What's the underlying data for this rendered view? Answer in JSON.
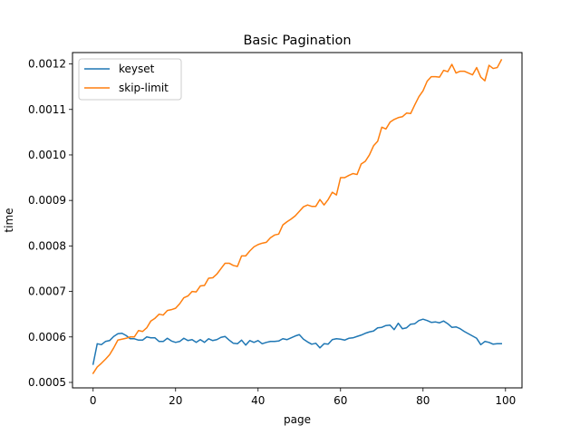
{
  "chart_data": {
    "type": "line",
    "title": "Basic Pagination",
    "xlabel": "page",
    "ylabel": "time",
    "xlim": [
      -5,
      104
    ],
    "ylim": [
      0.000488,
      0.001225
    ],
    "xticks": [
      0,
      20,
      40,
      60,
      80,
      100
    ],
    "xtick_labels": [
      "0",
      "20",
      "40",
      "60",
      "80",
      "100"
    ],
    "yticks": [
      0.0005,
      0.0006,
      0.0007,
      0.0008,
      0.0009,
      0.001,
      0.0011,
      0.0012
    ],
    "ytick_labels": [
      "0.0005",
      "0.0006",
      "0.0007",
      "0.0008",
      "0.0009",
      "0.0010",
      "0.0011",
      "0.0012"
    ],
    "grid": false,
    "legend": "top-left",
    "x": [
      0,
      1,
      2,
      3,
      4,
      5,
      6,
      7,
      8,
      9,
      10,
      11,
      12,
      13,
      14,
      15,
      16,
      17,
      18,
      19,
      20,
      21,
      22,
      23,
      24,
      25,
      26,
      27,
      28,
      29,
      30,
      31,
      32,
      33,
      34,
      35,
      36,
      37,
      38,
      39,
      40,
      41,
      42,
      43,
      44,
      45,
      46,
      47,
      48,
      49,
      50,
      51,
      52,
      53,
      54,
      55,
      56,
      57,
      58,
      59,
      60,
      61,
      62,
      63,
      64,
      65,
      66,
      67,
      68,
      69,
      70,
      71,
      72,
      73,
      74,
      75,
      76,
      77,
      78,
      79,
      80,
      81,
      82,
      83,
      84,
      85,
      86,
      87,
      88,
      89,
      90,
      91,
      92,
      93,
      94,
      95,
      96,
      97,
      98,
      99
    ],
    "series": [
      {
        "name": "keyset",
        "color": "#1f77b4",
        "values": [
          0.00054,
          0.000585,
          0.000583,
          0.00059,
          0.000592,
          0.000601,
          0.000607,
          0.000608,
          0.000603,
          0.000596,
          0.000596,
          0.000593,
          0.000593,
          0.0006,
          0.000598,
          0.000598,
          0.00059,
          0.00059,
          0.000597,
          0.000591,
          0.000588,
          0.00059,
          0.000597,
          0.000592,
          0.000594,
          0.000588,
          0.000594,
          0.000588,
          0.000596,
          0.000592,
          0.000594,
          0.000599,
          0.000601,
          0.000593,
          0.000586,
          0.000585,
          0.000593,
          0.000582,
          0.000592,
          0.000588,
          0.000592,
          0.000585,
          0.000588,
          0.00059,
          0.00059,
          0.000591,
          0.000596,
          0.000594,
          0.000598,
          0.000602,
          0.000605,
          0.000595,
          0.000589,
          0.000584,
          0.000586,
          0.000576,
          0.000585,
          0.000584,
          0.000594,
          0.000596,
          0.000595,
          0.000593,
          0.000597,
          0.000598,
          0.000601,
          0.000604,
          0.000608,
          0.000611,
          0.000613,
          0.00062,
          0.000621,
          0.000625,
          0.000626,
          0.000616,
          0.00063,
          0.000618,
          0.00062,
          0.000628,
          0.000629,
          0.000636,
          0.000639,
          0.000636,
          0.000632,
          0.000633,
          0.000631,
          0.000635,
          0.000629,
          0.000621,
          0.000622,
          0.000618,
          0.000612,
          0.000607,
          0.000602,
          0.000597,
          0.000583,
          0.00059,
          0.000588,
          0.000584,
          0.000585,
          0.000585
        ]
      },
      {
        "name": "skip-limit",
        "color": "#ff7f0e",
        "values": [
          0.00052,
          0.000534,
          0.000542,
          0.000551,
          0.000561,
          0.000576,
          0.000593,
          0.000595,
          0.000597,
          0.0006,
          0.0006,
          0.000614,
          0.000612,
          0.00062,
          0.000635,
          0.000641,
          0.00065,
          0.000648,
          0.000658,
          0.00066,
          0.000663,
          0.000673,
          0.000686,
          0.00069,
          0.0007,
          0.000699,
          0.000712,
          0.000713,
          0.000729,
          0.00073,
          0.000738,
          0.00075,
          0.000762,
          0.000762,
          0.000757,
          0.000755,
          0.000778,
          0.000778,
          0.000789,
          0.000798,
          0.000803,
          0.000806,
          0.000808,
          0.000818,
          0.000824,
          0.000826,
          0.000846,
          0.000853,
          0.000859,
          0.000866,
          0.000876,
          0.000886,
          0.00089,
          0.000887,
          0.000887,
          0.000902,
          0.00089,
          0.000902,
          0.000918,
          0.000912,
          0.00095,
          0.00095,
          0.000955,
          0.000959,
          0.000957,
          0.00098,
          0.000986,
          0.001,
          0.00102,
          0.00103,
          0.001061,
          0.001057,
          0.001072,
          0.001078,
          0.001082,
          0.001084,
          0.001092,
          0.001091,
          0.00111,
          0.001128,
          0.001141,
          0.001162,
          0.001172,
          0.001172,
          0.001171,
          0.001186,
          0.001183,
          0.001199,
          0.00118,
          0.001184,
          0.001184,
          0.00118,
          0.001176,
          0.001192,
          0.001171,
          0.001163,
          0.001197,
          0.00119,
          0.001192,
          0.001209
        ]
      }
    ]
  }
}
